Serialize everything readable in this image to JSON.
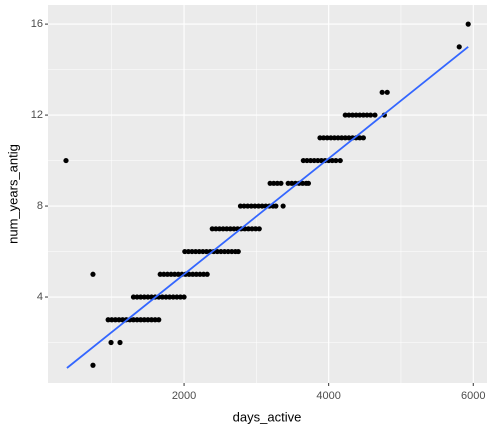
{
  "chart_data": {
    "type": "scatter",
    "x_label": "days_active",
    "y_label": "num_years_antig",
    "xlim": [
      118,
      6190
    ],
    "ylim": [
      0.22,
      16.84
    ],
    "xticks": [
      2000,
      4000,
      6000
    ],
    "yticks": [
      4,
      8,
      12,
      16
    ],
    "xminor": [
      1000,
      3000,
      5000
    ],
    "yminor": [
      2,
      6,
      10,
      14
    ],
    "grid": true,
    "series": [
      {
        "type": "scatter",
        "color": "#000000",
        "x": [
          367,
          740,
          740,
          990,
          1114,
          950,
          1000,
          1050,
          1100,
          1150,
          1200,
          1250,
          1300,
          1350,
          1400,
          1450,
          1500,
          1550,
          1600,
          1650,
          1300,
          1350,
          1400,
          1450,
          1500,
          1550,
          1600,
          1650,
          1700,
          1750,
          1800,
          1850,
          1900,
          1950,
          2000,
          1670,
          1720,
          1770,
          1820,
          1870,
          1920,
          1970,
          2020,
          2070,
          2120,
          2170,
          2220,
          2270,
          2320,
          2010,
          2060,
          2110,
          2160,
          2210,
          2260,
          2310,
          2360,
          2410,
          2460,
          2510,
          2560,
          2610,
          2660,
          2710,
          2750,
          2390,
          2440,
          2490,
          2540,
          2590,
          2640,
          2690,
          2740,
          2790,
          2840,
          2890,
          2940,
          2990,
          3040,
          2780,
          2830,
          2880,
          2930,
          2980,
          3030,
          3080,
          3130,
          3180,
          3230,
          3270,
          3370,
          3190,
          3240,
          3290,
          3340,
          3440,
          3490,
          3540,
          3590,
          3640,
          3690,
          3720,
          3650,
          3700,
          3750,
          3800,
          3850,
          3900,
          3950,
          4000,
          4050,
          4100,
          4160,
          3880,
          3930,
          3980,
          4030,
          4080,
          4130,
          4180,
          4230,
          4280,
          4330,
          4380,
          4430,
          4480,
          4230,
          4280,
          4330,
          4380,
          4430,
          4480,
          4530,
          4580,
          4640,
          4770,
          4740,
          4810,
          5806,
          5930
        ],
        "values": [
          10,
          1,
          5,
          2,
          2,
          3,
          3,
          3,
          3,
          3,
          3,
          3,
          3,
          3,
          3,
          3,
          3,
          3,
          3,
          3,
          4,
          4,
          4,
          4,
          4,
          4,
          4,
          4,
          4,
          4,
          4,
          4,
          4,
          4,
          4,
          5,
          5,
          5,
          5,
          5,
          5,
          5,
          5,
          5,
          5,
          5,
          5,
          5,
          5,
          6,
          6,
          6,
          6,
          6,
          6,
          6,
          6,
          6,
          6,
          6,
          6,
          6,
          6,
          6,
          6,
          7,
          7,
          7,
          7,
          7,
          7,
          7,
          7,
          7,
          7,
          7,
          7,
          7,
          7,
          8,
          8,
          8,
          8,
          8,
          8,
          8,
          8,
          8,
          8,
          8,
          8,
          9,
          9,
          9,
          9,
          9,
          9,
          9,
          9,
          9,
          9,
          9,
          10,
          10,
          10,
          10,
          10,
          10,
          10,
          10,
          10,
          10,
          10,
          11,
          11,
          11,
          11,
          11,
          11,
          11,
          11,
          11,
          11,
          11,
          11,
          11,
          12,
          12,
          12,
          12,
          12,
          12,
          12,
          12,
          12,
          12,
          13,
          13,
          15,
          16
        ]
      },
      {
        "type": "line",
        "color": "#3366FF",
        "x": [
          380,
          5930
        ],
        "values": [
          0.88,
          15.0
        ]
      }
    ]
  }
}
